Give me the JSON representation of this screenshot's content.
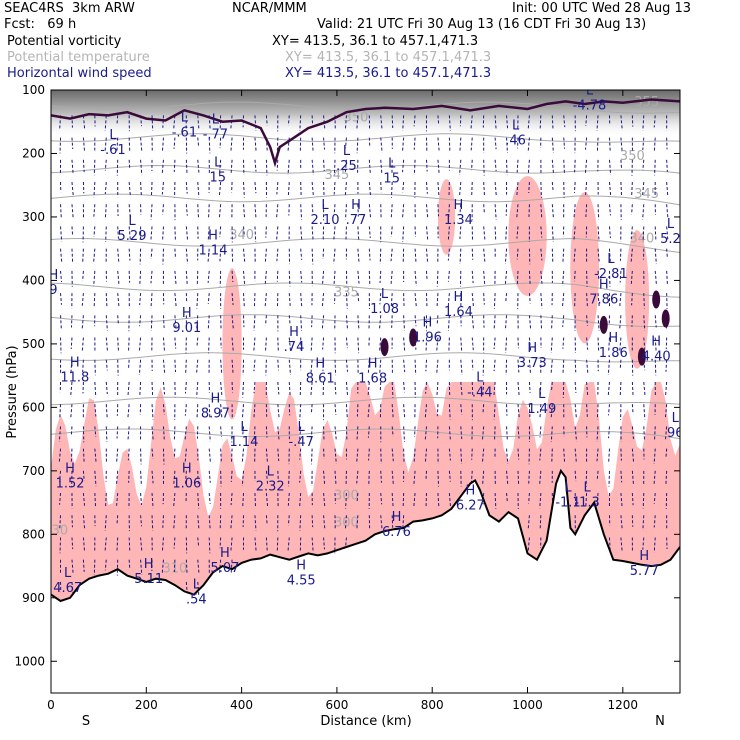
{
  "header": {
    "model": "SEAC4RS  3km ARW",
    "org": "NCAR/MMM",
    "init": "Init: 00 UTC Wed 28 Aug 13",
    "fcst": "Fcst:   69 h",
    "valid": "Valid: 21 UTC Fri 30 Aug 13 (16 CDT Fri 30 Aug 13)",
    "fields": [
      {
        "name": "Potential vorticity",
        "xy": "XY= 413.5, 36.1 to 457.1,471.3",
        "style": "black"
      },
      {
        "name": "Potential temperature",
        "xy": "XY= 413.5, 36.1 to 457.1,471.3",
        "style": "grey"
      },
      {
        "name": "Horizontal wind speed",
        "xy": "XY= 413.5, 36.1 to 457.1,471.3",
        "style": "blue"
      }
    ]
  },
  "colors": {
    "shade_pv": "#ffb6b6",
    "pv_contour": "#3a0a3a",
    "theta": "#aaaaaa",
    "wind": "#1a1a8c",
    "terrain": "#000000"
  },
  "chart_data": {
    "type": "cross-section",
    "xlabel": "Distance (km)",
    "ylabel": "Pressure (hPa)",
    "xlim": [
      0,
      1320
    ],
    "ylim": [
      1050,
      100
    ],
    "xticks": [
      0,
      200,
      400,
      600,
      800,
      1000,
      1200
    ],
    "yticks": [
      100,
      200,
      300,
      400,
      500,
      600,
      700,
      800,
      900,
      1000
    ],
    "end_labels": {
      "left": "S",
      "right": "N"
    },
    "theta_contours": [
      {
        "label": "355",
        "x": 1250,
        "p": 125
      },
      {
        "label": "350",
        "x": 640,
        "p": 150
      },
      {
        "label": "350",
        "x": 1220,
        "p": 210
      },
      {
        "label": "345",
        "x": 600,
        "p": 240
      },
      {
        "label": "345",
        "x": 1250,
        "p": 270
      },
      {
        "label": "340",
        "x": 400,
        "p": 335
      },
      {
        "label": "340",
        "x": 1240,
        "p": 340
      },
      {
        "label": "335",
        "x": 620,
        "p": 425
      },
      {
        "label": "330",
        "x": 10,
        "p": 800
      },
      {
        "label": "310",
        "x": 260,
        "p": 860
      },
      {
        "label": "300",
        "x": 620,
        "p": 745
      },
      {
        "label": "300",
        "x": 620,
        "p": 788
      }
    ],
    "wind_extrema": [
      {
        "type": "L",
        "value": "-.61",
        "x": 130,
        "p": 190
      },
      {
        "type": "L",
        "value": "-.61",
        "x": 280,
        "p": 162
      },
      {
        "type": "L",
        "value": "-.77",
        "x": 345,
        "p": 165
      },
      {
        "type": "L",
        "value": "15",
        "x": 350,
        "p": 233
      },
      {
        "type": "L",
        "value": "5.29",
        "x": 170,
        "p": 325
      },
      {
        "type": "H",
        "value": "1.14",
        "x": 340,
        "p": 348
      },
      {
        "type": "L",
        "value": "2.10",
        "x": 575,
        "p": 300
      },
      {
        "type": "H",
        "value": ".77",
        "x": 640,
        "p": 300
      },
      {
        "type": "L",
        "value": ".25",
        "x": 620,
        "p": 215
      },
      {
        "type": "L",
        "value": "15",
        "x": 715,
        "p": 235
      },
      {
        "type": "H",
        "value": "1.34",
        "x": 855,
        "p": 300
      },
      {
        "type": "L",
        "value": ".46",
        "x": 975,
        "p": 175
      },
      {
        "type": "L",
        "value": "-4.78",
        "x": 1130,
        "p": 120
      },
      {
        "type": "L",
        "value": "5.2",
        "x": 1300,
        "p": 330
      },
      {
        "type": "L",
        "value": "-2.81",
        "x": 1175,
        "p": 385
      },
      {
        "type": "H",
        "value": "9",
        "x": 5,
        "p": 410
      },
      {
        "type": "H",
        "value": "9.01",
        "x": 285,
        "p": 470
      },
      {
        "type": "L",
        "value": "1.08",
        "x": 700,
        "p": 440
      },
      {
        "type": "H",
        "value": "1.64",
        "x": 855,
        "p": 445
      },
      {
        "type": "H",
        "value": "1.96",
        "x": 790,
        "p": 485
      },
      {
        "type": "H",
        "value": "7.86",
        "x": 1160,
        "p": 425
      },
      {
        "type": "H",
        "value": "4.40",
        "x": 1270,
        "p": 515
      },
      {
        "type": "H",
        "value": "1.86",
        "x": 1180,
        "p": 510
      },
      {
        "type": "H",
        "value": "3.73",
        "x": 1010,
        "p": 525
      },
      {
        "type": "H",
        "value": "11.8",
        "x": 50,
        "p": 548
      },
      {
        "type": "H",
        "value": ".74",
        "x": 510,
        "p": 500
      },
      {
        "type": "H",
        "value": "8.61",
        "x": 565,
        "p": 550
      },
      {
        "type": "H",
        "value": "1.68",
        "x": 675,
        "p": 550
      },
      {
        "type": "L",
        "value": "-.44",
        "x": 900,
        "p": 572
      },
      {
        "type": "L",
        "value": "1.49",
        "x": 1030,
        "p": 598
      },
      {
        "type": "H",
        "value": "8.97",
        "x": 345,
        "p": 605
      },
      {
        "type": "L",
        "value": "1.14",
        "x": 405,
        "p": 650
      },
      {
        "type": "L",
        "value": "-.47",
        "x": 525,
        "p": 650
      },
      {
        "type": "L",
        "value": "96",
        "x": 1310,
        "p": 636
      },
      {
        "type": "H",
        "value": "1.52",
        "x": 40,
        "p": 715
      },
      {
        "type": "H",
        "value": "1.06",
        "x": 285,
        "p": 715
      },
      {
        "type": "L",
        "value": "2.32",
        "x": 460,
        "p": 720
      },
      {
        "type": "H",
        "value": "6.27",
        "x": 880,
        "p": 750
      },
      {
        "type": "H",
        "value": "6.76",
        "x": 725,
        "p": 792
      },
      {
        "type": "H",
        "value": "5.11",
        "x": 205,
        "p": 866
      },
      {
        "type": "H",
        "value": "5.07",
        "x": 365,
        "p": 848
      },
      {
        "type": "H",
        "value": "4.55",
        "x": 525,
        "p": 868
      },
      {
        "type": "H",
        "value": "5.77",
        "x": 1245,
        "p": 853
      },
      {
        "type": "L",
        "value": "4.67",
        "x": 35,
        "p": 880
      },
      {
        "type": "L",
        "value": ".54",
        "x": 305,
        "p": 898
      },
      {
        "type": "L",
        "value": "-1.3",
        "x": 1125,
        "p": 745
      },
      {
        "type": "L",
        "value": "-1.1",
        "x": 1085,
        "p": 745
      }
    ],
    "terrain_pressure": [
      [
        0,
        895
      ],
      [
        20,
        905
      ],
      [
        40,
        900
      ],
      [
        60,
        880
      ],
      [
        80,
        870
      ],
      [
        100,
        865
      ],
      [
        120,
        862
      ],
      [
        140,
        855
      ],
      [
        160,
        865
      ],
      [
        180,
        870
      ],
      [
        200,
        875
      ],
      [
        220,
        870
      ],
      [
        240,
        872
      ],
      [
        260,
        880
      ],
      [
        280,
        890
      ],
      [
        300,
        895
      ],
      [
        320,
        880
      ],
      [
        340,
        860
      ],
      [
        360,
        850
      ],
      [
        380,
        855
      ],
      [
        400,
        845
      ],
      [
        420,
        840
      ],
      [
        440,
        838
      ],
      [
        460,
        832
      ],
      [
        480,
        836
      ],
      [
        500,
        840
      ],
      [
        520,
        835
      ],
      [
        540,
        830
      ],
      [
        560,
        833
      ],
      [
        580,
        830
      ],
      [
        600,
        825
      ],
      [
        620,
        820
      ],
      [
        640,
        815
      ],
      [
        660,
        810
      ],
      [
        680,
        800
      ],
      [
        700,
        795
      ],
      [
        720,
        792
      ],
      [
        740,
        790
      ],
      [
        760,
        780
      ],
      [
        780,
        778
      ],
      [
        800,
        775
      ],
      [
        820,
        770
      ],
      [
        840,
        760
      ],
      [
        860,
        740
      ],
      [
        880,
        720
      ],
      [
        890,
        715
      ],
      [
        900,
        730
      ],
      [
        920,
        770
      ],
      [
        940,
        780
      ],
      [
        960,
        765
      ],
      [
        980,
        775
      ],
      [
        1000,
        830
      ],
      [
        1020,
        840
      ],
      [
        1040,
        810
      ],
      [
        1060,
        720
      ],
      [
        1070,
        700
      ],
      [
        1080,
        710
      ],
      [
        1090,
        790
      ],
      [
        1100,
        800
      ],
      [
        1120,
        770
      ],
      [
        1140,
        750
      ],
      [
        1160,
        800
      ],
      [
        1180,
        840
      ],
      [
        1200,
        842
      ],
      [
        1220,
        845
      ],
      [
        1240,
        848
      ],
      [
        1260,
        850
      ],
      [
        1280,
        848
      ],
      [
        1300,
        840
      ],
      [
        1320,
        820
      ]
    ],
    "tropopause_pv": [
      [
        0,
        140
      ],
      [
        40,
        145
      ],
      [
        80,
        138
      ],
      [
        120,
        140
      ],
      [
        160,
        135
      ],
      [
        200,
        145
      ],
      [
        240,
        148
      ],
      [
        280,
        132
      ],
      [
        320,
        140
      ],
      [
        360,
        150
      ],
      [
        400,
        148
      ],
      [
        440,
        160
      ],
      [
        460,
        190
      ],
      [
        470,
        215
      ],
      [
        480,
        190
      ],
      [
        500,
        180
      ],
      [
        540,
        160
      ],
      [
        580,
        150
      ],
      [
        620,
        135
      ],
      [
        660,
        130
      ],
      [
        700,
        128
      ],
      [
        760,
        130
      ],
      [
        820,
        125
      ],
      [
        880,
        132
      ],
      [
        940,
        125
      ],
      [
        1000,
        130
      ],
      [
        1040,
        122
      ],
      [
        1080,
        118
      ],
      [
        1120,
        122
      ],
      [
        1160,
        118
      ],
      [
        1200,
        120
      ],
      [
        1260,
        115
      ],
      [
        1320,
        118
      ]
    ]
  }
}
